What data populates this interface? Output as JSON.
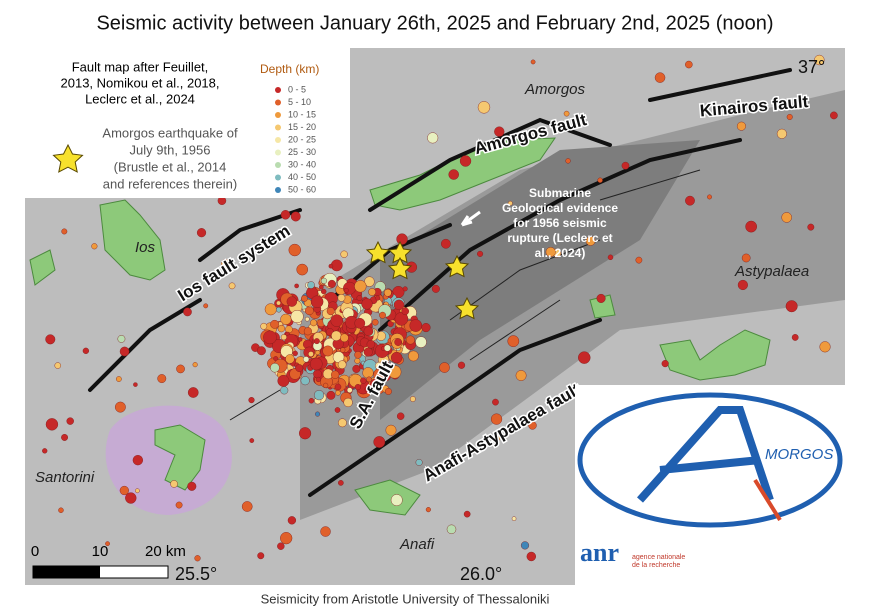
{
  "title": "Seismic activity between January 26th, 2025 and February 2nd, 2025 (noon)",
  "legend": {
    "source_lines": [
      "Fault map after Feuillet,",
      "2013, Nomikou et al., 2018,",
      "Leclerc et al., 2024"
    ],
    "star_lines": [
      "Amorgos earthquake of",
      "July 9th, 1956",
      "(Brustle et al., 2014",
      "and references therein)"
    ],
    "depth_title": "Depth (km)",
    "depth_items": [
      {
        "label": "0 - 5",
        "color": "#c62828"
      },
      {
        "label": "5 - 10",
        "color": "#e0602a"
      },
      {
        "label": "10 - 15",
        "color": "#ef9a3c"
      },
      {
        "label": "15 - 20",
        "color": "#f5c870"
      },
      {
        "label": "20 - 25",
        "color": "#f6e7a6"
      },
      {
        "label": "25 - 30",
        "color": "#e8f0c0"
      },
      {
        "label": "30 - 40",
        "color": "#b9dcb0"
      },
      {
        "label": "40 - 50",
        "color": "#7fbcc0"
      },
      {
        "label": "50 - 60",
        "color": "#3f86b8"
      }
    ]
  },
  "map": {
    "amorgos": "Amorgos",
    "kinairos_fault": "Kinairos fault",
    "amorgos_fault": "Amorgos fault",
    "ios": "Ios",
    "ios_fault_system": "Ios fault system",
    "sa_fault": "S.A. fault",
    "anafi_astypalaea_fault": "Anafi-Astypalaea fault",
    "astypalaea": "Astypalaea",
    "santorini": "Santorini",
    "anafi": "Anafi",
    "annotation_lines": [
      "Submarine",
      "Geological evidence",
      "for 1956 seismic",
      "rupture (Leclerc et",
      "al., 2024)"
    ],
    "lat_top": "37°",
    "lon_left": "25.5°",
    "lon_right": "26.0°"
  },
  "scale": {
    "zero": "0",
    "ten": "10",
    "twenty": "20 km"
  },
  "logo": {
    "name": "MORGOS",
    "anr": "anr",
    "agency_lines": [
      "agence nationale",
      "de la recherche"
    ]
  },
  "footer": "Seismicity from Aristotle University of Thessaloniki"
}
